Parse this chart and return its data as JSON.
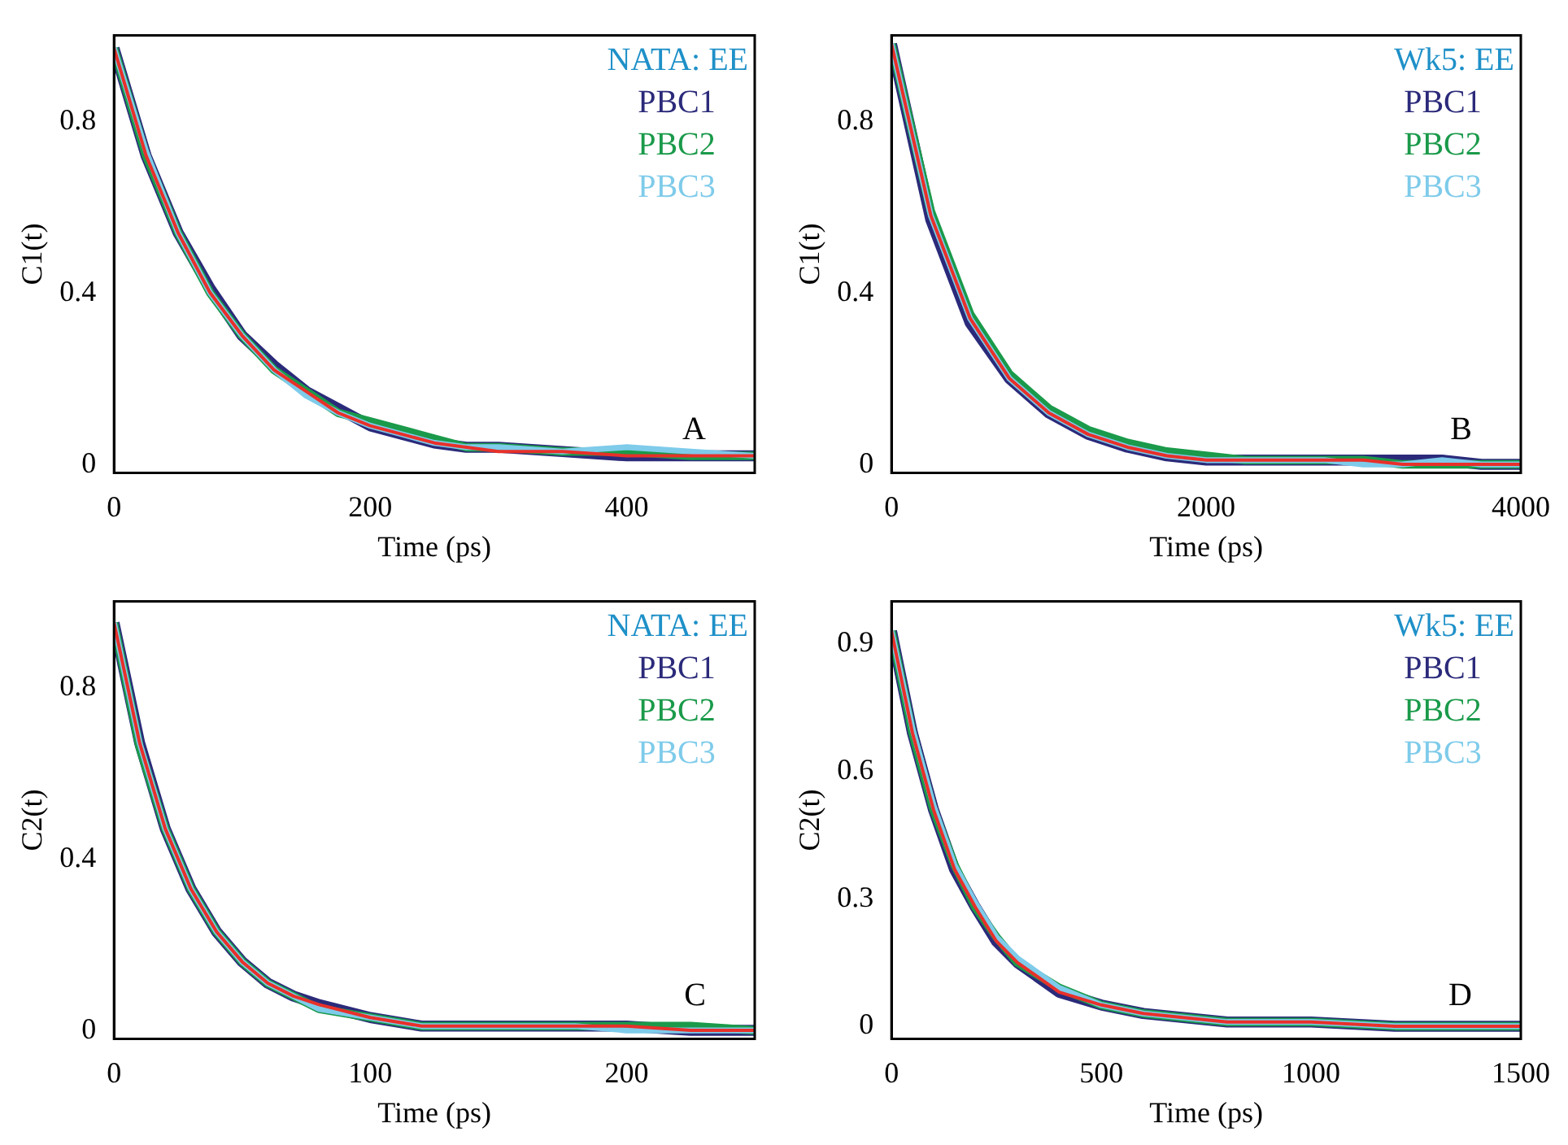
{
  "chart_data": [
    {
      "type": "line",
      "xlabel": "Time (ps)",
      "ylabel": "C1(t)",
      "legend_title": "NATA: EE",
      "legend": "top right",
      "grid": false,
      "marker": "none",
      "line_style": "solid",
      "xlim": [
        0,
        500
      ],
      "xticks": [
        0,
        200,
        400
      ],
      "ylim": [
        -0.02,
        1.0
      ],
      "yticks": [
        0,
        0.4,
        0.8
      ],
      "annotations": [
        "A"
      ],
      "x": [
        0,
        25,
        50,
        75,
        100,
        125,
        150,
        175,
        200,
        225,
        250,
        275,
        300,
        350,
        400,
        450,
        500
      ],
      "series": [
        {
          "name": "PBC1",
          "color": "#2b2a7a",
          "values": [
            0.97,
            0.72,
            0.54,
            0.41,
            0.3,
            0.23,
            0.17,
            0.13,
            0.09,
            0.07,
            0.05,
            0.04,
            0.04,
            0.03,
            0.02,
            0.02,
            0.02
          ]
        },
        {
          "name": "PBC2",
          "color": "#1a9a4a",
          "values": [
            0.97,
            0.72,
            0.54,
            0.4,
            0.3,
            0.22,
            0.17,
            0.12,
            0.1,
            0.08,
            0.06,
            0.04,
            0.04,
            0.03,
            0.03,
            0.02,
            0.02
          ]
        },
        {
          "name": "PBC3",
          "color": "#7ecbea",
          "values": [
            0.97,
            0.73,
            0.54,
            0.4,
            0.3,
            0.22,
            0.16,
            0.12,
            0.09,
            0.07,
            0.05,
            0.04,
            0.04,
            0.03,
            0.04,
            0.03,
            0.02
          ]
        },
        {
          "color": "#e8302a",
          "values": [
            0.97,
            0.72,
            0.54,
            0.4,
            0.3,
            0.22,
            0.17,
            0.12,
            0.09,
            0.07,
            0.05,
            0.04,
            0.03,
            0.03,
            0.02,
            0.02,
            0.02
          ]
        }
      ]
    },
    {
      "type": "line",
      "xlabel": "Time (ps)",
      "ylabel": "C1(t)",
      "legend_title": "Wk5: EE",
      "legend": "top right",
      "grid": false,
      "marker": "none",
      "line_style": "solid",
      "xlim": [
        0,
        4000
      ],
      "xticks": [
        0,
        2000,
        4000
      ],
      "ylim": [
        -0.02,
        1.0
      ],
      "yticks": [
        0,
        0.4,
        0.8
      ],
      "annotations": [
        "B"
      ],
      "x": [
        0,
        250,
        500,
        750,
        1000,
        1250,
        1500,
        1750,
        2000,
        2250,
        2500,
        2750,
        3000,
        3250,
        3500,
        3750,
        4000
      ],
      "series": [
        {
          "name": "PBC1",
          "color": "#2b2a7a",
          "values": [
            0.98,
            0.57,
            0.33,
            0.2,
            0.12,
            0.07,
            0.04,
            0.02,
            0.01,
            0.01,
            0.01,
            0.01,
            0.01,
            0.01,
            0.01,
            0.0,
            0.0
          ]
        },
        {
          "name": "PBC2",
          "color": "#1a9a4a",
          "values": [
            0.98,
            0.59,
            0.35,
            0.21,
            0.13,
            0.08,
            0.05,
            0.03,
            0.02,
            0.01,
            0.01,
            0.01,
            0.01,
            0.0,
            0.0,
            0.0,
            0.0
          ]
        },
        {
          "name": "PBC3",
          "color": "#7ecbea",
          "values": [
            0.98,
            0.58,
            0.34,
            0.2,
            0.12,
            0.07,
            0.04,
            0.02,
            0.01,
            0.01,
            0.01,
            0.01,
            0.0,
            0.0,
            0.01,
            0.0,
            0.0
          ]
        },
        {
          "color": "#e8302a",
          "values": [
            0.98,
            0.58,
            0.34,
            0.2,
            0.12,
            0.07,
            0.04,
            0.02,
            0.01,
            0.01,
            0.01,
            0.01,
            0.01,
            0.0,
            0.0,
            0.0,
            0.0
          ]
        }
      ]
    },
    {
      "type": "line",
      "xlabel": "Time (ps)",
      "ylabel": "C2(t)",
      "legend_title": "NATA: EE",
      "legend": "top right",
      "grid": false,
      "marker": "none",
      "line_style": "solid",
      "xlim": [
        0,
        250
      ],
      "xticks": [
        0,
        100,
        200
      ],
      "ylim": [
        -0.02,
        1.0
      ],
      "yticks": [
        0,
        0.4,
        0.8
      ],
      "annotations": [
        "C"
      ],
      "x": [
        0,
        10,
        20,
        30,
        40,
        50,
        60,
        70,
        80,
        100,
        120,
        140,
        160,
        180,
        200,
        225,
        250
      ],
      "series": [
        {
          "name": "PBC1",
          "color": "#2b2a7a",
          "values": [
            0.95,
            0.67,
            0.47,
            0.33,
            0.23,
            0.16,
            0.11,
            0.08,
            0.06,
            0.03,
            0.01,
            0.01,
            0.01,
            0.01,
            0.01,
            0.0,
            0.0
          ]
        },
        {
          "name": "PBC2",
          "color": "#1a9a4a",
          "values": [
            0.95,
            0.66,
            0.47,
            0.33,
            0.23,
            0.16,
            0.11,
            0.08,
            0.05,
            0.03,
            0.01,
            0.01,
            0.01,
            0.01,
            0.01,
            0.01,
            0.0
          ]
        },
        {
          "name": "PBC3",
          "color": "#7ecbea",
          "values": [
            0.95,
            0.67,
            0.47,
            0.33,
            0.23,
            0.16,
            0.11,
            0.08,
            0.05,
            0.03,
            0.01,
            0.01,
            0.01,
            0.01,
            0.0,
            0.0,
            0.0
          ]
        },
        {
          "color": "#e8302a",
          "values": [
            0.95,
            0.67,
            0.47,
            0.33,
            0.23,
            0.16,
            0.11,
            0.08,
            0.06,
            0.03,
            0.01,
            0.01,
            0.01,
            0.01,
            0.01,
            0.0,
            0.0
          ]
        }
      ]
    },
    {
      "type": "line",
      "xlabel": "Time (ps)",
      "ylabel": "C2(t)",
      "legend_title": "Wk5: EE",
      "legend": "top right",
      "grid": false,
      "marker": "none",
      "line_style": "solid",
      "xlim": [
        0,
        1500
      ],
      "xticks": [
        0,
        500,
        1000,
        1500
      ],
      "ylim": [
        -0.03,
        1.0
      ],
      "yticks": [
        0,
        0.3,
        0.6,
        0.9
      ],
      "annotations": [
        "D"
      ],
      "x": [
        0,
        50,
        100,
        150,
        200,
        250,
        300,
        400,
        500,
        600,
        700,
        800,
        1000,
        1200,
        1500
      ],
      "series": [
        {
          "name": "PBC1",
          "color": "#2b2a7a",
          "values": [
            0.93,
            0.69,
            0.51,
            0.37,
            0.28,
            0.2,
            0.15,
            0.08,
            0.05,
            0.03,
            0.02,
            0.01,
            0.01,
            0.0,
            0.0
          ]
        },
        {
          "name": "PBC2",
          "color": "#1a9a4a",
          "values": [
            0.93,
            0.69,
            0.51,
            0.38,
            0.28,
            0.21,
            0.15,
            0.09,
            0.05,
            0.03,
            0.02,
            0.01,
            0.01,
            0.0,
            0.0
          ]
        },
        {
          "name": "PBC3",
          "color": "#7ecbea",
          "values": [
            0.93,
            0.7,
            0.52,
            0.38,
            0.29,
            0.21,
            0.16,
            0.09,
            0.05,
            0.03,
            0.02,
            0.01,
            0.01,
            0.0,
            0.0
          ]
        },
        {
          "color": "#e8302a",
          "values": [
            0.93,
            0.69,
            0.51,
            0.37,
            0.28,
            0.2,
            0.15,
            0.08,
            0.05,
            0.03,
            0.02,
            0.01,
            0.01,
            0.0,
            0.0
          ]
        }
      ]
    }
  ]
}
